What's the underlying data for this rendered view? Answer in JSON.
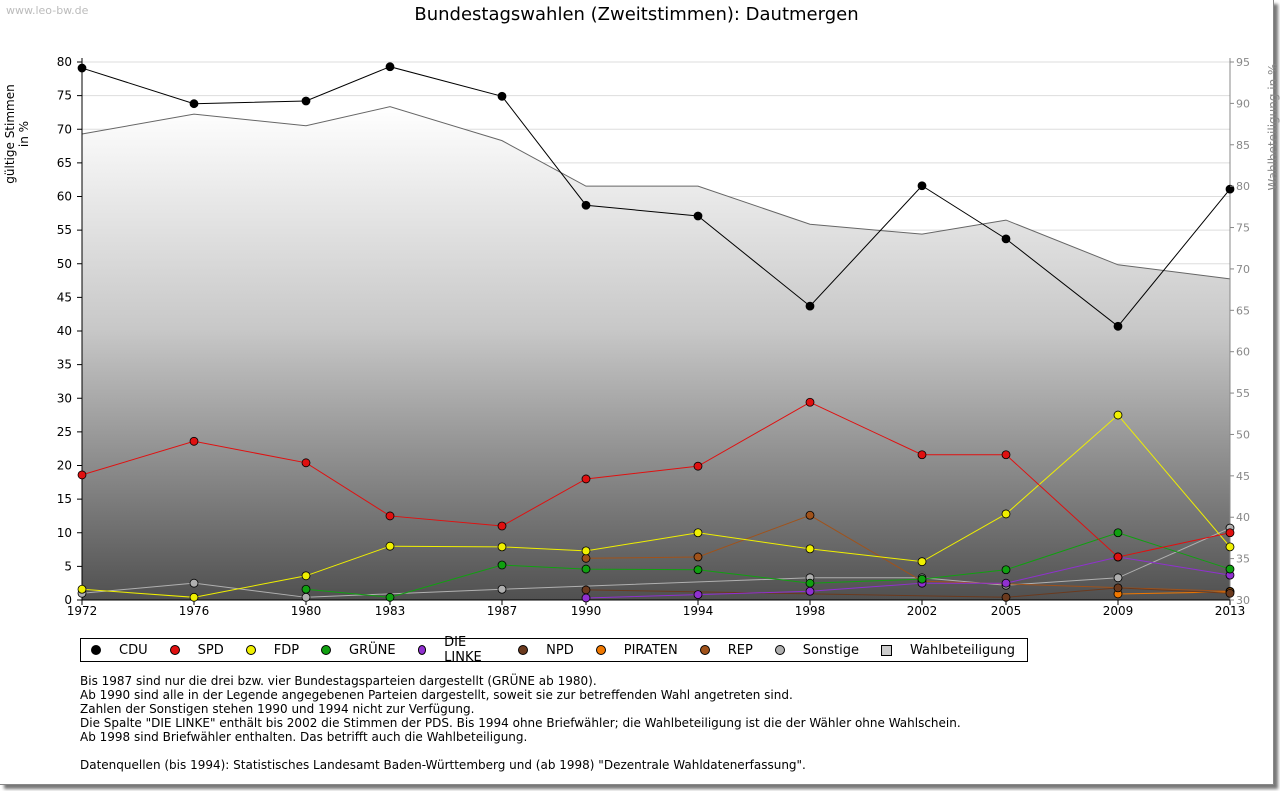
{
  "watermark": "www.leo-bw.de",
  "chart_data": {
    "type": "line",
    "title": "Bundestagswahlen (Zweitstimmen): Dautmergen",
    "ylabel": "gültige Stimmen in %",
    "ylabel_right": "Wahlbeteiligung in %",
    "xlabel": "",
    "ylim": [
      0,
      80
    ],
    "ylim_right": [
      30,
      95
    ],
    "yticks": [
      0,
      5,
      10,
      15,
      20,
      25,
      30,
      35,
      40,
      45,
      50,
      55,
      60,
      65,
      70,
      75,
      80
    ],
    "yticks_right": [
      30,
      35,
      40,
      45,
      50,
      55,
      60,
      65,
      70,
      75,
      80,
      85,
      90,
      95
    ],
    "categories": [
      "1972",
      "1976",
      "1980",
      "1983",
      "1987",
      "1990",
      "1994",
      "1998",
      "2002",
      "2005",
      "2009",
      "2013"
    ],
    "grid": true,
    "legend_position": "bottom",
    "series": [
      {
        "name": "CDU",
        "color": "#000000",
        "values": [
          79.1,
          73.8,
          74.2,
          79.3,
          74.9,
          58.7,
          57.1,
          43.7,
          61.6,
          53.7,
          40.7,
          61.1
        ]
      },
      {
        "name": "SPD",
        "color": "#e01010",
        "values": [
          18.6,
          23.6,
          20.4,
          12.5,
          11.0,
          18.0,
          19.9,
          29.4,
          21.6,
          21.6,
          6.4,
          10.0
        ]
      },
      {
        "name": "FDP",
        "color": "#f0f000",
        "values": [
          1.6,
          0.4,
          3.6,
          8.0,
          7.9,
          7.3,
          10.0,
          7.6,
          5.7,
          12.8,
          27.5,
          7.9
        ]
      },
      {
        "name": "GRÜNE",
        "color": "#10a010",
        "values": [
          null,
          null,
          1.6,
          0.4,
          5.2,
          4.6,
          4.5,
          2.5,
          3.1,
          4.5,
          10.0,
          4.6
        ]
      },
      {
        "name": "DIE LINKE",
        "color": "#9030d0",
        "values": [
          null,
          null,
          null,
          null,
          null,
          0.3,
          0.8,
          1.3,
          2.5,
          2.5,
          6.4,
          3.7
        ]
      },
      {
        "name": "NPD",
        "color": "#6b3a1e",
        "values": [
          null,
          null,
          null,
          null,
          null,
          1.5,
          null,
          null,
          null,
          0.4,
          1.8,
          1.0
        ]
      },
      {
        "name": "PIRATEN",
        "color": "#f07800",
        "values": [
          null,
          null,
          null,
          null,
          null,
          null,
          null,
          null,
          null,
          null,
          0.9,
          1.2
        ]
      },
      {
        "name": "REP",
        "color": "#a0521a",
        "values": [
          null,
          null,
          null,
          null,
          null,
          6.2,
          6.4,
          12.6,
          2.8,
          null,
          null,
          1.3
        ]
      },
      {
        "name": "Sonstige",
        "color": "#b0b0b0",
        "values": [
          1.0,
          2.5,
          0.4,
          null,
          1.6,
          null,
          null,
          3.3,
          3.3,
          2.2,
          3.3,
          10.7
        ]
      }
    ],
    "turnout": {
      "name": "Wahlbeteiligung",
      "axis": "right",
      "values": [
        86.3,
        88.7,
        87.3,
        89.6,
        85.5,
        80.0,
        80.0,
        75.4,
        74.2,
        75.9,
        70.5,
        68.8
      ]
    }
  },
  "legend": [
    "CDU",
    "SPD",
    "FDP",
    "GRÜNE",
    "DIE LINKE",
    "NPD",
    "PIRATEN",
    "REP",
    "Sonstige",
    "Wahlbeteiligung"
  ],
  "notes": [
    "Bis 1987 sind nur die drei bzw. vier Bundestagsparteien dargestellt (GRÜNE ab 1980).",
    "Ab 1990 sind alle in der Legende angegebenen Parteien dargestellt, soweit sie zur betreffenden Wahl angetreten sind.",
    "Zahlen der Sonstigen stehen 1990 und 1994 nicht zur Verfügung.",
    "Die Spalte \"DIE LINKE\" enthält bis 2002 die Stimmen der PDS. Bis 1994 ohne Briefwähler; die Wahlbeteiligung ist die der Wähler ohne Wahlschein.",
    "Ab 1998 sind Briefwähler enthalten. Das betrifft auch die Wahlbeteiligung.",
    "",
    "Datenquellen (bis 1994): Statistisches Landesamt Baden-Württemberg und (ab 1998) \"Dezentrale Wahldatenerfassung\"."
  ]
}
